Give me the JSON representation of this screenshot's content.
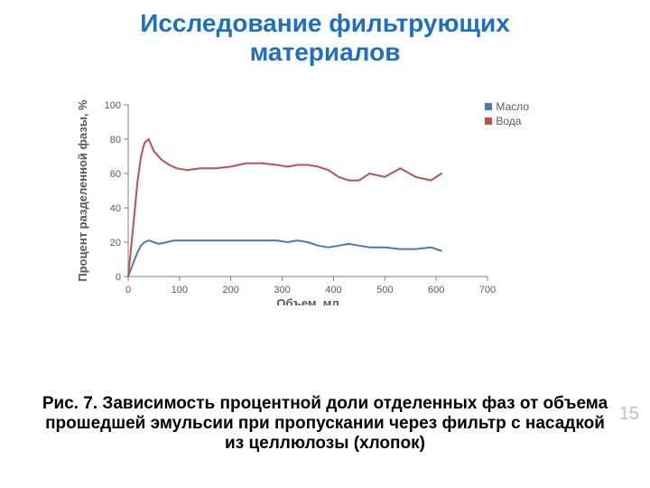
{
  "title_line1": "Исследование фильтрующих",
  "title_line2": "материалов",
  "title_color": "#1f6fc1",
  "title_fontsize": 28,
  "caption": "Рис. 7. Зависимость процентной доли отделенных фаз от объема прошедшей эмульсии при пропускании через фильтр с насадкой из целлюлозы (хлопок)",
  "caption_fontsize": 19,
  "caption_color": "#000000",
  "page_number": "15",
  "chart": {
    "type": "line",
    "background_color": "#ffffff",
    "axis_color": "#808080",
    "tick_label_color": "#595959",
    "xlabel": "Объем, мл",
    "ylabel": "Процент разделенной фазы, %",
    "label_fontsize": 13,
    "xlim": [
      0,
      700
    ],
    "xtick_step": 100,
    "ylim": [
      0,
      100
    ],
    "ytick_step": 20,
    "line_width": 2,
    "marker": "none",
    "legend": {
      "position": "top-right",
      "items": [
        {
          "label": "Масло",
          "color": "#4a7ab0",
          "swatch": "#4a7ab0"
        },
        {
          "label": "Вода",
          "color": "#c0504d",
          "swatch": "#c0504d"
        }
      ]
    },
    "series": [
      {
        "name": "Масло",
        "color": "#4a7ab0",
        "x": [
          0,
          10,
          18,
          25,
          32,
          40,
          50,
          60,
          75,
          90,
          110,
          140,
          170,
          200,
          230,
          260,
          290,
          310,
          330,
          350,
          370,
          390,
          410,
          430,
          450,
          470,
          500,
          530,
          560,
          590,
          610
        ],
        "y": [
          0,
          8,
          14,
          18,
          20,
          21,
          20,
          19,
          20,
          21,
          21,
          21,
          21,
          21,
          21,
          21,
          21,
          20,
          21,
          20,
          18,
          17,
          18,
          19,
          18,
          17,
          17,
          16,
          16,
          17,
          15
        ]
      },
      {
        "name": "Вода",
        "color": "#c0504d",
        "x": [
          0,
          10,
          18,
          25,
          32,
          40,
          50,
          65,
          80,
          95,
          115,
          140,
          170,
          200,
          230,
          260,
          290,
          310,
          330,
          350,
          370,
          390,
          410,
          430,
          450,
          470,
          500,
          530,
          560,
          590,
          610
        ],
        "y": [
          0,
          30,
          55,
          70,
          78,
          80,
          73,
          68,
          65,
          63,
          62,
          63,
          63,
          64,
          66,
          66,
          65,
          64,
          65,
          65,
          64,
          62,
          58,
          56,
          56,
          60,
          58,
          63,
          58,
          56,
          60
        ]
      }
    ]
  }
}
